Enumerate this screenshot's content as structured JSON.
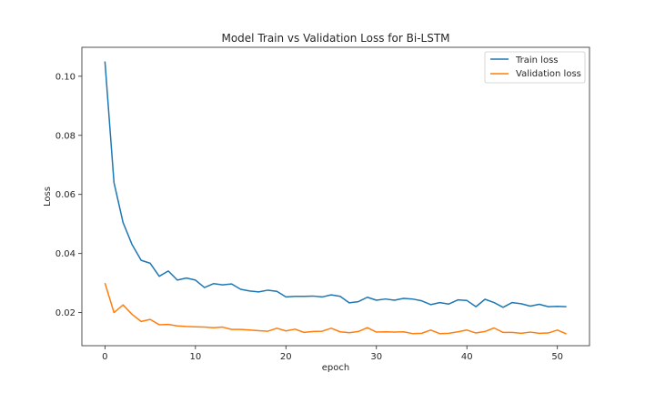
{
  "chart_data": {
    "type": "line",
    "title": "Model Train vs Validation Loss for Bi-LSTM",
    "xlabel": "epoch",
    "ylabel": "Loss",
    "xlim": [
      -2.55,
      53.55
    ],
    "ylim": [
      0.0088,
      0.1098
    ],
    "xticks": [
      0,
      10,
      20,
      30,
      40,
      50
    ],
    "yticks": [
      0.02,
      0.04,
      0.06,
      0.08,
      0.1
    ],
    "ytick_labels": [
      "0.02",
      "0.04",
      "0.06",
      "0.08",
      "0.10"
    ],
    "grid": false,
    "legend_position": "top-right",
    "series": [
      {
        "name": "Train loss",
        "color": "#1f77b4",
        "x": [
          0,
          1,
          2,
          3,
          4,
          5,
          6,
          7,
          8,
          9,
          10,
          11,
          12,
          13,
          14,
          15,
          16,
          17,
          18,
          19,
          20,
          21,
          22,
          23,
          24,
          25,
          26,
          27,
          28,
          29,
          30,
          31,
          32,
          33,
          34,
          35,
          36,
          37,
          38,
          39,
          40,
          41,
          42,
          43,
          44,
          45,
          46,
          47,
          48,
          49,
          50,
          51
        ],
        "values": [
          0.105,
          0.064,
          0.0505,
          0.043,
          0.0377,
          0.0367,
          0.0323,
          0.0341,
          0.031,
          0.0317,
          0.031,
          0.0285,
          0.0298,
          0.0294,
          0.0297,
          0.0279,
          0.0273,
          0.027,
          0.0276,
          0.0272,
          0.0253,
          0.0255,
          0.0255,
          0.0256,
          0.0253,
          0.026,
          0.0255,
          0.0233,
          0.0237,
          0.0252,
          0.0242,
          0.0246,
          0.0242,
          0.0248,
          0.0246,
          0.024,
          0.0227,
          0.0234,
          0.0229,
          0.0243,
          0.0241,
          0.022,
          0.0245,
          0.0234,
          0.0218,
          0.0234,
          0.023,
          0.0222,
          0.0228,
          0.022,
          0.0221,
          0.022
        ]
      },
      {
        "name": "Validation loss",
        "color": "#ff7f0e",
        "x": [
          0,
          1,
          2,
          3,
          4,
          5,
          6,
          7,
          8,
          9,
          10,
          11,
          12,
          13,
          14,
          15,
          16,
          17,
          18,
          19,
          20,
          21,
          22,
          23,
          24,
          25,
          26,
          27,
          28,
          29,
          30,
          31,
          32,
          33,
          34,
          35,
          36,
          37,
          38,
          39,
          40,
          41,
          42,
          43,
          44,
          45,
          46,
          47,
          48,
          49,
          50,
          51
        ],
        "values": [
          0.03,
          0.02,
          0.0226,
          0.0194,
          0.017,
          0.0177,
          0.0159,
          0.016,
          0.0155,
          0.0153,
          0.0152,
          0.0151,
          0.0149,
          0.0151,
          0.0143,
          0.0143,
          0.0141,
          0.0139,
          0.0137,
          0.0147,
          0.0138,
          0.0144,
          0.0133,
          0.0136,
          0.0137,
          0.0147,
          0.0135,
          0.0132,
          0.0136,
          0.0149,
          0.0134,
          0.0135,
          0.0134,
          0.0135,
          0.0129,
          0.013,
          0.0141,
          0.0129,
          0.013,
          0.0135,
          0.0141,
          0.0131,
          0.0136,
          0.0148,
          0.0133,
          0.0133,
          0.013,
          0.0134,
          0.013,
          0.0131,
          0.0141,
          0.0128
        ]
      }
    ]
  }
}
